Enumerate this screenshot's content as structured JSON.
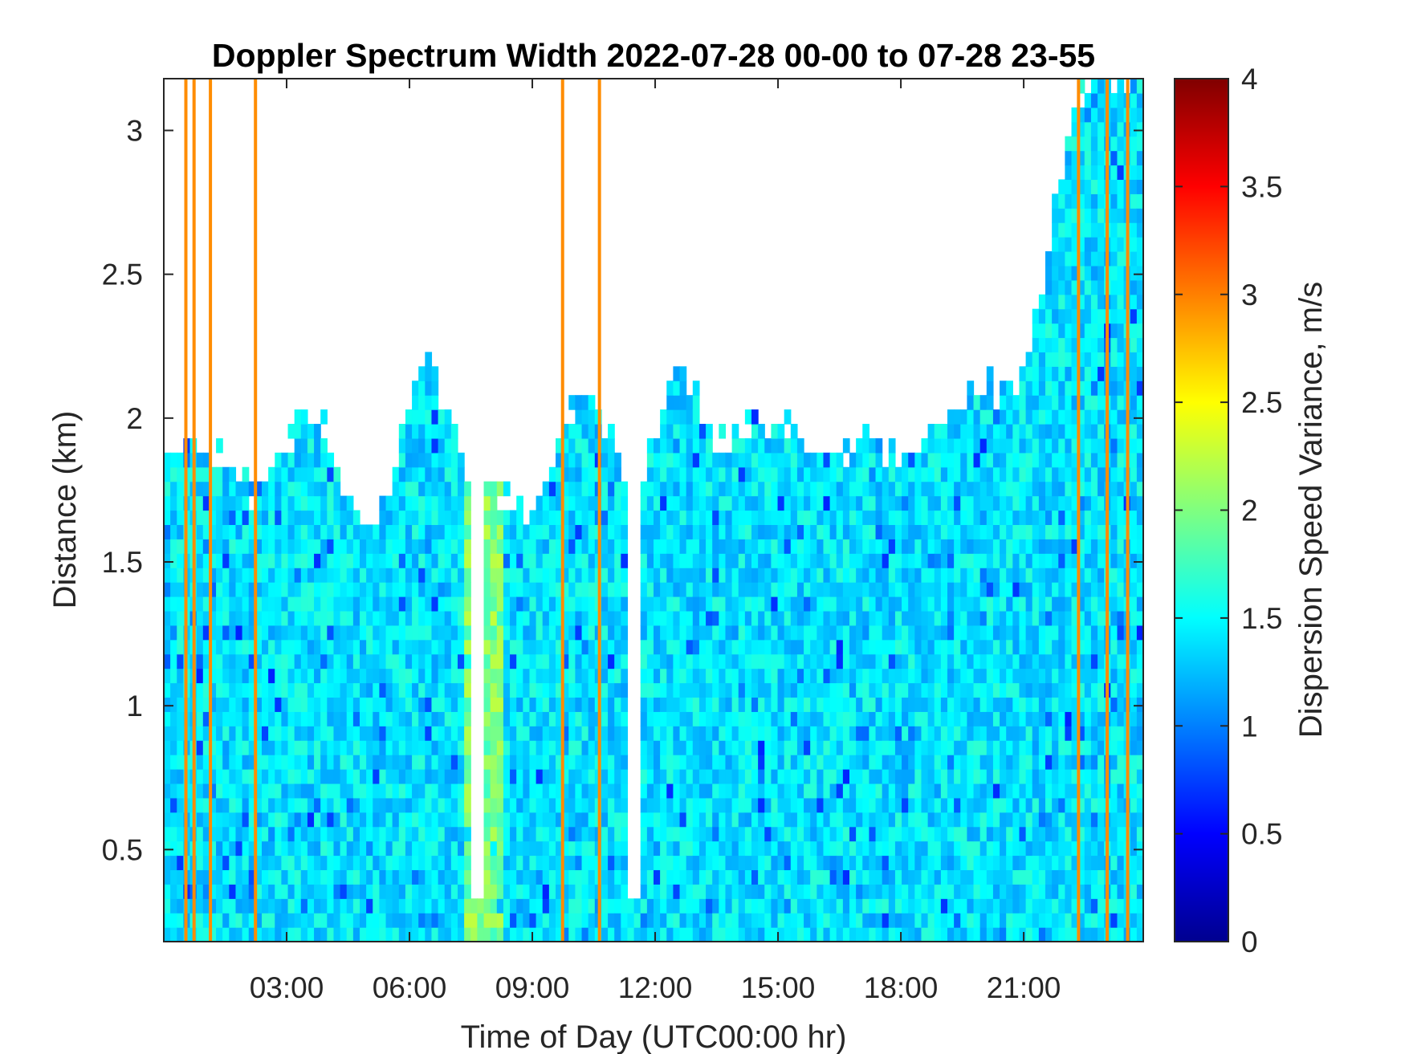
{
  "chart_data": {
    "type": "heatmap",
    "title": "Doppler Spectrum Width 2022-07-28 00-00 to 07-28 23-55",
    "xlabel": "Time of Day (UTC00:00 hr)",
    "ylabel": "Distance (km)",
    "colorbar_label": "Dispersion Speed Variance, m/s",
    "colormap": "jet",
    "xlim_hours": [
      0,
      23.92
    ],
    "ylim_km": [
      0.18,
      3.18
    ],
    "clim": [
      0,
      4
    ],
    "x_ticks": [
      {
        "hour": 3,
        "label": "03:00"
      },
      {
        "hour": 6,
        "label": "06:00"
      },
      {
        "hour": 9,
        "label": "09:00"
      },
      {
        "hour": 12,
        "label": "12:00"
      },
      {
        "hour": 15,
        "label": "15:00"
      },
      {
        "hour": 18,
        "label": "18:00"
      },
      {
        "hour": 21,
        "label": "21:00"
      }
    ],
    "y_ticks": [
      {
        "km": 0.5,
        "label": "0.5"
      },
      {
        "km": 1,
        "label": "1"
      },
      {
        "km": 1.5,
        "label": "1.5"
      },
      {
        "km": 2,
        "label": "2"
      },
      {
        "km": 2.5,
        "label": "2.5"
      },
      {
        "km": 3,
        "label": "3"
      }
    ],
    "colorbar_ticks": [
      {
        "value": 0,
        "label": "0"
      },
      {
        "value": 0.5,
        "label": "0.5"
      },
      {
        "value": 1,
        "label": "1"
      },
      {
        "value": 1.5,
        "label": "1.5"
      },
      {
        "value": 2,
        "label": "2"
      },
      {
        "value": 2.5,
        "label": "2.5"
      },
      {
        "value": 3,
        "label": "3"
      },
      {
        "value": 3.5,
        "label": "3.5"
      },
      {
        "value": 4,
        "label": "4"
      }
    ],
    "typical_value_ms": 1.4,
    "data_top_profile_km": [
      [
        0.0,
        1.9
      ],
      [
        0.5,
        1.88
      ],
      [
        1.0,
        1.9
      ],
      [
        1.5,
        1.85
      ],
      [
        2.2,
        1.75
      ],
      [
        2.8,
        1.85
      ],
      [
        3.3,
        2.0
      ],
      [
        4.0,
        1.95
      ],
      [
        4.5,
        1.7
      ],
      [
        5.0,
        1.6
      ],
      [
        5.5,
        1.75
      ],
      [
        6.0,
        2.1
      ],
      [
        6.5,
        2.2
      ],
      [
        7.0,
        2.0
      ],
      [
        7.5,
        1.8
      ],
      [
        8.0,
        1.75
      ],
      [
        8.5,
        1.7
      ],
      [
        9.0,
        1.7
      ],
      [
        9.5,
        1.78
      ],
      [
        10.0,
        2.05
      ],
      [
        10.5,
        2.1
      ],
      [
        11.0,
        1.9
      ],
      [
        11.5,
        1.75
      ],
      [
        12.0,
        1.95
      ],
      [
        12.5,
        2.15
      ],
      [
        13.0,
        2.1
      ],
      [
        13.5,
        1.9
      ],
      [
        14.0,
        1.95
      ],
      [
        14.5,
        2.0
      ],
      [
        15.0,
        2.0
      ],
      [
        15.5,
        1.95
      ],
      [
        16.0,
        1.9
      ],
      [
        16.5,
        1.85
      ],
      [
        17.0,
        1.95
      ],
      [
        17.5,
        1.9
      ],
      [
        18.0,
        1.85
      ],
      [
        18.5,
        1.9
      ],
      [
        19.0,
        2.0
      ],
      [
        19.5,
        2.05
      ],
      [
        20.0,
        2.1
      ],
      [
        20.5,
        2.1
      ],
      [
        21.0,
        2.2
      ],
      [
        21.5,
        2.5
      ],
      [
        22.0,
        2.9
      ],
      [
        22.5,
        3.18
      ],
      [
        23.92,
        3.18
      ]
    ],
    "clear_gaps_hours": [
      [
        7.45,
        7.75
      ],
      [
        11.35,
        11.6
      ]
    ],
    "spike_columns_hours": [
      0.5,
      0.7,
      1.1,
      2.2,
      9.7,
      10.6,
      22.3,
      23.0,
      23.5
    ]
  }
}
